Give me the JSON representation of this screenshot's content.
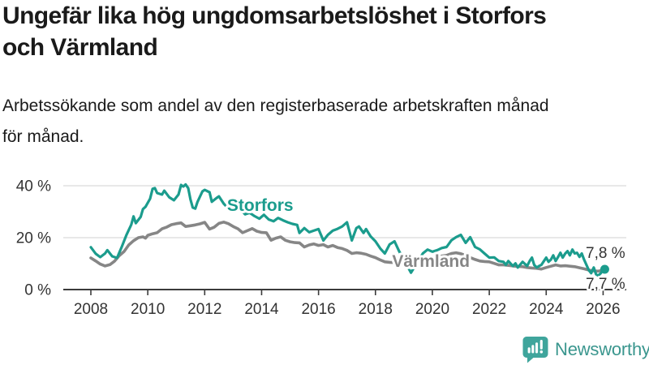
{
  "header": {
    "title_line1": "Ungefär lika hög ungdomsarbetslöshet i Storfors",
    "title_line2": "och Värmland",
    "subtitle_line1": "Arbetssökande som andel av den registerbaserade arbetskraften månad",
    "subtitle_line2": "för månad."
  },
  "footer": {
    "brand": "Newsworthy"
  },
  "colors": {
    "storfors_teal": "#1b9c8d",
    "varmland_gray": "#868686",
    "axis_text": "#333333",
    "axis_line": "#3b3b3b",
    "grid": "#d9d9d9",
    "logo_teal": "#3fa59c",
    "end_label": "#333333"
  },
  "chart_data": {
    "type": "line",
    "title": "Ungefär lika hög ungdomsarbetslöshet i Storfors och Värmland",
    "subtitle": "Arbetssökande som andel av den registerbaserade arbetskraften månad för månad.",
    "grid": true,
    "legend_position": "inline-labels",
    "x_axis": {
      "ticks": [
        2008,
        2010,
        2012,
        2014,
        2016,
        2018,
        2020,
        2022,
        2024,
        2026
      ]
    },
    "y_axis": {
      "ticks": [
        0,
        20,
        40
      ],
      "tick_labels": [
        "0 %",
        "20 %",
        "40 %"
      ],
      "range": [
        0,
        43
      ],
      "unit": "%"
    },
    "series": [
      {
        "name": "Värmland",
        "color": "#868686",
        "end_value": 7.7,
        "end_label": "7,7 %",
        "label_anchor": {
          "year": 2019.95,
          "value": 11.0
        },
        "points": [
          [
            2008.0,
            12.2
          ],
          [
            2008.17,
            11.0
          ],
          [
            2008.33,
            9.8
          ],
          [
            2008.5,
            9.1
          ],
          [
            2008.67,
            9.6
          ],
          [
            2008.83,
            10.9
          ],
          [
            2009.0,
            13.1
          ],
          [
            2009.17,
            14.7
          ],
          [
            2009.33,
            17.2
          ],
          [
            2009.5,
            18.8
          ],
          [
            2009.67,
            20.0
          ],
          [
            2009.83,
            20.3
          ],
          [
            2009.92,
            19.8
          ],
          [
            2010.0,
            20.9
          ],
          [
            2010.17,
            21.5
          ],
          [
            2010.33,
            21.9
          ],
          [
            2010.5,
            23.4
          ],
          [
            2010.67,
            24.1
          ],
          [
            2010.83,
            25.0
          ],
          [
            2011.0,
            25.4
          ],
          [
            2011.17,
            25.7
          ],
          [
            2011.33,
            24.3
          ],
          [
            2011.5,
            24.6
          ],
          [
            2011.67,
            24.9
          ],
          [
            2011.83,
            25.3
          ],
          [
            2012.0,
            25.9
          ],
          [
            2012.17,
            23.3
          ],
          [
            2012.33,
            24.0
          ],
          [
            2012.5,
            25.5
          ],
          [
            2012.67,
            26.0
          ],
          [
            2012.83,
            25.4
          ],
          [
            2013.0,
            24.3
          ],
          [
            2013.17,
            23.4
          ],
          [
            2013.33,
            21.9
          ],
          [
            2013.5,
            22.7
          ],
          [
            2013.67,
            23.5
          ],
          [
            2013.83,
            22.5
          ],
          [
            2014.0,
            22.0
          ],
          [
            2014.17,
            21.9
          ],
          [
            2014.33,
            19.0
          ],
          [
            2014.5,
            19.8
          ],
          [
            2014.67,
            20.3
          ],
          [
            2014.83,
            19.0
          ],
          [
            2015.0,
            18.4
          ],
          [
            2015.17,
            18.1
          ],
          [
            2015.33,
            18.0
          ],
          [
            2015.5,
            16.4
          ],
          [
            2015.67,
            17.2
          ],
          [
            2015.83,
            17.6
          ],
          [
            2016.0,
            17.0
          ],
          [
            2016.17,
            17.3
          ],
          [
            2016.33,
            16.4
          ],
          [
            2016.5,
            17.0
          ],
          [
            2016.67,
            16.2
          ],
          [
            2016.83,
            15.8
          ],
          [
            2017.0,
            15.1
          ],
          [
            2017.17,
            13.9
          ],
          [
            2017.33,
            14.2
          ],
          [
            2017.5,
            14.0
          ],
          [
            2017.67,
            13.6
          ],
          [
            2017.83,
            12.9
          ],
          [
            2018.0,
            12.3
          ],
          [
            2018.17,
            11.4
          ],
          [
            2018.33,
            10.7
          ],
          [
            2018.5,
            10.5
          ],
          [
            2018.67,
            10.4
          ],
          [
            2018.83,
            10.7
          ],
          [
            2019.0,
            10.1
          ],
          [
            2019.25,
            10.3
          ],
          [
            2019.5,
            10.8
          ],
          [
            2019.75,
            11.3
          ],
          [
            2020.0,
            12.0
          ],
          [
            2020.17,
            12.6
          ],
          [
            2020.33,
            12.9
          ],
          [
            2020.5,
            13.2
          ],
          [
            2020.67,
            13.9
          ],
          [
            2020.83,
            14.2
          ],
          [
            2021.0,
            13.8
          ],
          [
            2021.17,
            13.2
          ],
          [
            2021.33,
            12.3
          ],
          [
            2021.5,
            11.6
          ],
          [
            2021.67,
            11.0
          ],
          [
            2021.83,
            10.8
          ],
          [
            2022.0,
            10.7
          ],
          [
            2022.17,
            10.1
          ],
          [
            2022.33,
            9.5
          ],
          [
            2022.5,
            9.5
          ],
          [
            2022.67,
            9.3
          ],
          [
            2022.83,
            9.1
          ],
          [
            2023.0,
            8.9
          ],
          [
            2023.17,
            8.8
          ],
          [
            2023.33,
            8.5
          ],
          [
            2023.5,
            8.3
          ],
          [
            2023.67,
            8.2
          ],
          [
            2023.83,
            7.9
          ],
          [
            2024.0,
            8.5
          ],
          [
            2024.17,
            9.0
          ],
          [
            2024.33,
            9.5
          ],
          [
            2024.5,
            9.1
          ],
          [
            2024.67,
            9.2
          ],
          [
            2024.83,
            9.0
          ],
          [
            2025.0,
            8.8
          ],
          [
            2025.17,
            8.4
          ],
          [
            2025.33,
            8.0
          ],
          [
            2025.5,
            7.5
          ],
          [
            2025.67,
            7.2
          ],
          [
            2025.83,
            7.1
          ],
          [
            2025.92,
            7.3
          ],
          [
            2026.0,
            7.7
          ]
        ]
      },
      {
        "name": "Storfors",
        "color": "#1b9c8d",
        "end_value": 7.8,
        "end_label": "7,8 %",
        "label_anchor": {
          "year": 2013.95,
          "value": 32.5
        },
        "points": [
          [
            2008.0,
            16.3
          ],
          [
            2008.17,
            13.8
          ],
          [
            2008.33,
            12.5
          ],
          [
            2008.5,
            13.9
          ],
          [
            2008.58,
            15.2
          ],
          [
            2008.75,
            12.8
          ],
          [
            2008.92,
            12.2
          ],
          [
            2009.08,
            16.3
          ],
          [
            2009.25,
            21.0
          ],
          [
            2009.42,
            25.0
          ],
          [
            2009.5,
            28.2
          ],
          [
            2009.58,
            25.6
          ],
          [
            2009.75,
            28.0
          ],
          [
            2009.83,
            31.0
          ],
          [
            2009.92,
            31.9
          ],
          [
            2010.08,
            35.0
          ],
          [
            2010.17,
            38.8
          ],
          [
            2010.25,
            39.1
          ],
          [
            2010.33,
            37.2
          ],
          [
            2010.5,
            36.6
          ],
          [
            2010.58,
            38.1
          ],
          [
            2010.75,
            35.6
          ],
          [
            2010.92,
            34.4
          ],
          [
            2011.08,
            36.6
          ],
          [
            2011.17,
            40.3
          ],
          [
            2011.25,
            39.7
          ],
          [
            2011.33,
            40.5
          ],
          [
            2011.42,
            39.1
          ],
          [
            2011.5,
            34.7
          ],
          [
            2011.58,
            31.6
          ],
          [
            2011.67,
            31.2
          ],
          [
            2011.75,
            33.8
          ],
          [
            2011.92,
            37.8
          ],
          [
            2012.0,
            38.4
          ],
          [
            2012.17,
            37.5
          ],
          [
            2012.25,
            33.8
          ],
          [
            2012.42,
            35.3
          ],
          [
            2012.5,
            35.9
          ],
          [
            2012.67,
            33.1
          ],
          [
            2012.75,
            32.2
          ],
          [
            2012.92,
            34.7
          ],
          [
            2013.08,
            33.5
          ],
          [
            2013.25,
            31.0
          ],
          [
            2013.42,
            29.0
          ],
          [
            2013.58,
            29.6
          ],
          [
            2013.75,
            28.3
          ],
          [
            2013.92,
            27.3
          ],
          [
            2014.08,
            28.8
          ],
          [
            2014.25,
            27.0
          ],
          [
            2014.42,
            26.3
          ],
          [
            2014.58,
            27.6
          ],
          [
            2014.75,
            26.7
          ],
          [
            2014.92,
            25.9
          ],
          [
            2015.08,
            25.3
          ],
          [
            2015.25,
            24.9
          ],
          [
            2015.33,
            21.8
          ],
          [
            2015.5,
            23.7
          ],
          [
            2015.67,
            22.1
          ],
          [
            2015.83,
            22.7
          ],
          [
            2016.0,
            23.3
          ],
          [
            2016.17,
            18.9
          ],
          [
            2016.33,
            21.1
          ],
          [
            2016.5,
            22.7
          ],
          [
            2016.67,
            23.4
          ],
          [
            2016.83,
            24.3
          ],
          [
            2017.0,
            25.9
          ],
          [
            2017.17,
            18.9
          ],
          [
            2017.33,
            23.7
          ],
          [
            2017.42,
            24.3
          ],
          [
            2017.58,
            21.8
          ],
          [
            2017.67,
            23.3
          ],
          [
            2017.83,
            20.5
          ],
          [
            2018.0,
            18.6
          ],
          [
            2018.17,
            15.8
          ],
          [
            2018.33,
            13.9
          ],
          [
            2018.5,
            17.4
          ],
          [
            2018.67,
            18.6
          ],
          [
            2018.83,
            14.8
          ],
          [
            2019.0,
            11.5
          ],
          [
            2019.25,
            6.5
          ],
          [
            2019.5,
            11.0
          ],
          [
            2019.67,
            14.0
          ],
          [
            2019.83,
            15.4
          ],
          [
            2020.0,
            14.6
          ],
          [
            2020.17,
            15.2
          ],
          [
            2020.33,
            16.0
          ],
          [
            2020.5,
            16.4
          ],
          [
            2020.67,
            19.0
          ],
          [
            2020.83,
            20.2
          ],
          [
            2021.0,
            21.1
          ],
          [
            2021.17,
            18.0
          ],
          [
            2021.33,
            20.2
          ],
          [
            2021.5,
            16.4
          ],
          [
            2021.67,
            15.5
          ],
          [
            2021.83,
            13.9
          ],
          [
            2022.0,
            12.3
          ],
          [
            2022.17,
            12.4
          ],
          [
            2022.33,
            11.0
          ],
          [
            2022.5,
            10.7
          ],
          [
            2022.58,
            9.5
          ],
          [
            2022.67,
            11.0
          ],
          [
            2022.83,
            9.1
          ],
          [
            2022.92,
            10.1
          ],
          [
            2023.0,
            8.5
          ],
          [
            2023.08,
            9.5
          ],
          [
            2023.17,
            10.7
          ],
          [
            2023.33,
            9.1
          ],
          [
            2023.42,
            11.0
          ],
          [
            2023.5,
            12.3
          ],
          [
            2023.58,
            9.5
          ],
          [
            2023.67,
            8.5
          ],
          [
            2023.75,
            9.1
          ],
          [
            2023.83,
            9.5
          ],
          [
            2023.92,
            11.0
          ],
          [
            2024.0,
            12.3
          ],
          [
            2024.08,
            10.7
          ],
          [
            2024.17,
            11.6
          ],
          [
            2024.25,
            13.2
          ],
          [
            2024.33,
            11.0
          ],
          [
            2024.42,
            12.6
          ],
          [
            2024.5,
            14.2
          ],
          [
            2024.58,
            12.3
          ],
          [
            2024.67,
            13.9
          ],
          [
            2024.75,
            14.8
          ],
          [
            2024.83,
            13.2
          ],
          [
            2024.92,
            15.4
          ],
          [
            2025.0,
            13.9
          ],
          [
            2025.08,
            14.2
          ],
          [
            2025.17,
            12.6
          ],
          [
            2025.25,
            13.9
          ],
          [
            2025.33,
            11.6
          ],
          [
            2025.5,
            7.4
          ],
          [
            2025.58,
            6.3
          ],
          [
            2025.67,
            8.5
          ],
          [
            2025.75,
            5.9
          ],
          [
            2025.83,
            5.4
          ],
          [
            2025.92,
            6.3
          ],
          [
            2026.0,
            7.8
          ]
        ]
      }
    ]
  }
}
